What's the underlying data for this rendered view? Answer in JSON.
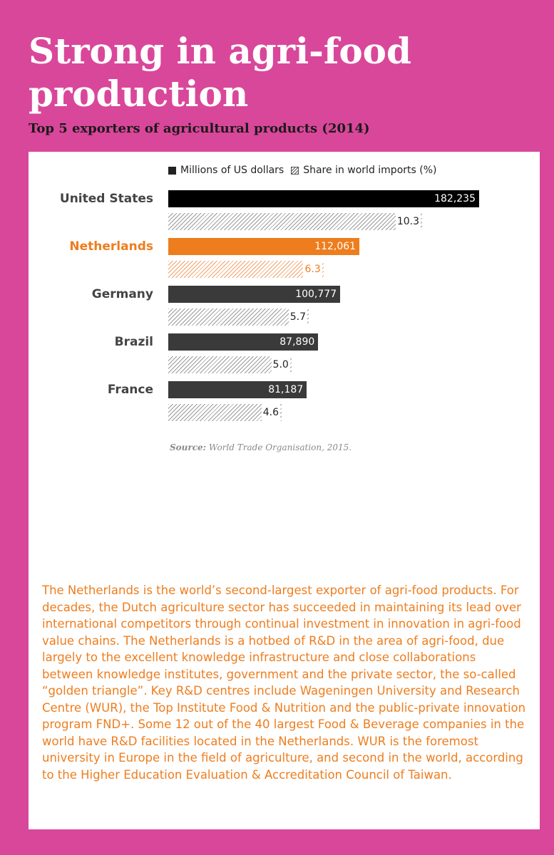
{
  "title": "Strong in agri-food production",
  "subtitle": "Top 5 exporters of agricultural products (2014)",
  "legend": {
    "value_label": "Millions of US dollars",
    "share_label": "Share in world imports (%)"
  },
  "colors": {
    "background": "#d9479a",
    "highlight": "#ee7d1e",
    "value_bar": "#000000",
    "value_bar_other": "#3a3a3a"
  },
  "chart_data": {
    "type": "bar",
    "orientation": "horizontal",
    "title": "Top 5 exporters of agricultural products (2014)",
    "categories": [
      "United States",
      "Netherlands",
      "Germany",
      "Brazil",
      "France"
    ],
    "series": [
      {
        "name": "Millions of US dollars",
        "values": [
          182235,
          112061,
          100777,
          87890,
          81187
        ]
      },
      {
        "name": "Share in world imports (%)",
        "values": [
          10.3,
          6.3,
          5.7,
          5.0,
          4.6
        ]
      }
    ],
    "value_labels": [
      "182,235",
      "112,061",
      "100,777",
      "87,890",
      "81,187"
    ],
    "share_labels": [
      "10.3",
      "6.3",
      "5.7",
      "5.0",
      "4.6"
    ],
    "highlight_category": "Netherlands",
    "legend_position": "top"
  },
  "source": {
    "label": "Source:",
    "text": "World Trade Organisation, 2015."
  },
  "body_text": "The Netherlands is the world’s second-largest exporter of agri-food products. For decades, the Dutch agriculture sector has succeeded in maintaining its lead over international competitors through continual investment in innovation in agri-food value chains. The Netherlands is a hotbed of R&D in the area of agri-food, due largely to the excellent knowledge infrastructure and close collaborations between knowledge institutes, government and the private sector, the so-called “golden triangle”. Key R&D centres include Wageningen University and Research Centre (WUR), the Top Institute Food & Nutrition and the public-private innovation program FND+. Some 12 out of the 40 largest Food & Beverage companies in the world have R&D facilities located in the Netherlands. WUR is the foremost university in Europe in the field of agriculture, and second in the world, according to the Higher Education Evaluation & Accreditation Council of Taiwan."
}
